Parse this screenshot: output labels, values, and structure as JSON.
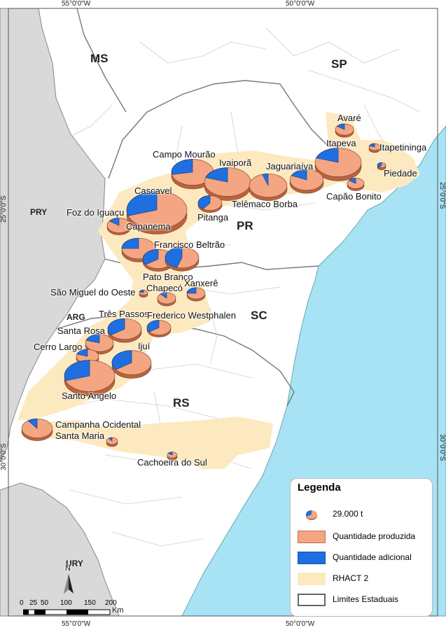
{
  "map": {
    "colors": {
      "ocean": "#a8e2f5",
      "foreign": "#d9d9d9",
      "brazil": "#ffffff",
      "rhact": "#fde9bf",
      "produced": "#f4a582",
      "additional": "#1f6fe0",
      "state_border": "#777777",
      "muni_border": "#c4c4c4"
    },
    "coordinates": {
      "top_left": "55°0'0\"W",
      "top_right": "50°0'0\"W",
      "bottom_left": "55°0'0\"W",
      "bottom_right": "50°0'0\"W",
      "left_top": "25°0'0\"S",
      "left_bottom": "30°0'0\"S",
      "right_top": "25°0'0\"S",
      "right_bottom": "30°0'0\"S"
    },
    "states": [
      "MS",
      "SP",
      "PR",
      "SC",
      "RS"
    ],
    "countries": [
      "PRY",
      "ARG",
      "URY"
    ],
    "regions": [
      {
        "name": "Avaré",
        "share_additional": 0.15
      },
      {
        "name": "Itapetininga",
        "share_additional": 0.2
      },
      {
        "name": "Itapeva",
        "share_additional": 0.2
      },
      {
        "name": "Piedade",
        "share_additional": 0.4
      },
      {
        "name": "Capão Bonito",
        "share_additional": 0.15
      },
      {
        "name": "Campo Mourão",
        "share_additional": 0.28
      },
      {
        "name": "Ivaiporã",
        "share_additional": 0.2
      },
      {
        "name": "Jaguariaíva",
        "share_additional": 0.05
      },
      {
        "name": "Telêmaco Borba",
        "share_additional": 0.18
      },
      {
        "name": "Cascavel",
        "share_additional": 0.3
      },
      {
        "name": "Pitanga",
        "share_additional": 0.4
      },
      {
        "name": "Foz do Iguaçu",
        "share_additional": 0.15
      },
      {
        "name": "Capanema",
        "share_additional": 0.25
      },
      {
        "name": "Francisco Beltrão",
        "share_additional": 0.35
      },
      {
        "name": "Pato Branco",
        "share_additional": 0.45
      },
      {
        "name": "São Miguel do Oeste",
        "share_additional": 0.2
      },
      {
        "name": "Chapecó",
        "share_additional": 0.12
      },
      {
        "name": "Xanxerê",
        "share_additional": 0.25
      },
      {
        "name": "Três Passos",
        "share_additional": 0.35
      },
      {
        "name": "Frederico Westphalen",
        "share_additional": 0.35
      },
      {
        "name": "Santa Rosa",
        "share_additional": 0.2
      },
      {
        "name": "Cerro Largo",
        "share_additional": 0.2
      },
      {
        "name": "Ijuí",
        "share_additional": 0.35
      },
      {
        "name": "Santo Ângelo",
        "share_additional": 0.3
      },
      {
        "name": "Campanha Ocidental",
        "share_additional": 0.1
      },
      {
        "name": "Santa Maria",
        "share_additional": 0.1
      },
      {
        "name": "Cachoeira do Sul",
        "share_additional": 0.15
      }
    ]
  },
  "legend": {
    "title": "Legenda",
    "items": [
      {
        "label": "29.000 t",
        "icon": "pie-symbol-icon"
      },
      {
        "label": "Quantidade produzida",
        "icon": "produced-swatch"
      },
      {
        "label": "Quantidade adicional",
        "icon": "additional-swatch"
      },
      {
        "label": "RHACT 2",
        "icon": "rhact-swatch"
      },
      {
        "label": "Limites Estaduais",
        "icon": "state-limit-swatch"
      }
    ]
  },
  "scale": {
    "north": "N",
    "ticks": [
      "0",
      "25",
      "50",
      "100",
      "150",
      "200"
    ],
    "unit": "Km"
  }
}
